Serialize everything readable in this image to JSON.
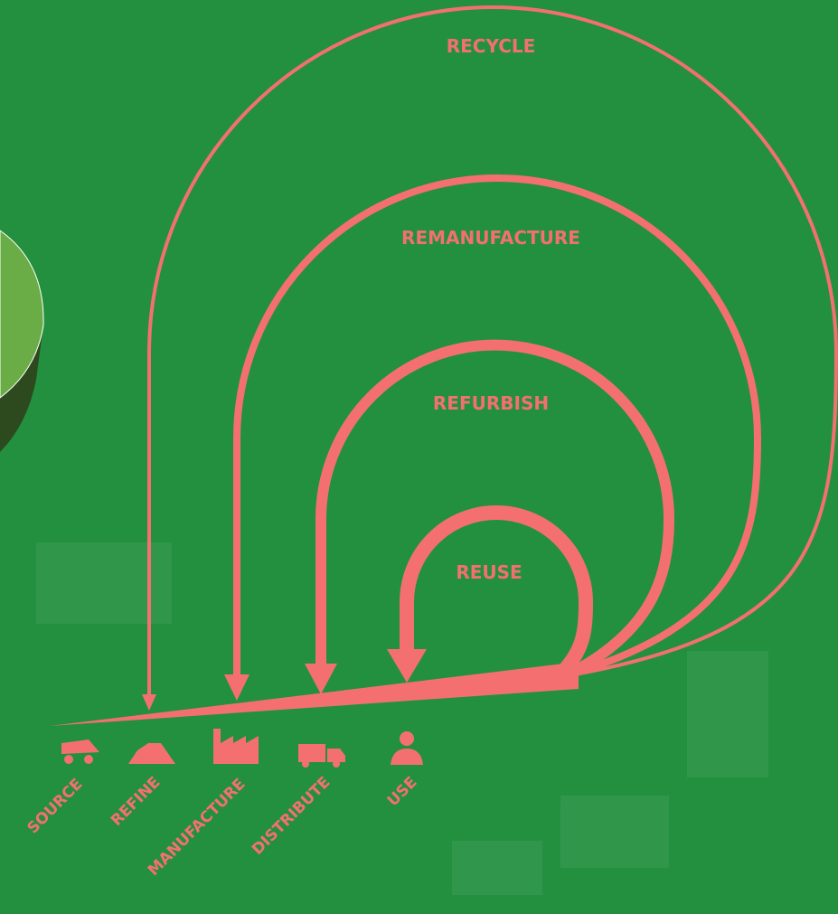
{
  "loops": [
    {
      "label": "RECYCLE"
    },
    {
      "label": "REMANUFACTURE"
    },
    {
      "label": "REFURBISH"
    },
    {
      "label": "REUSE"
    }
  ],
  "stages": [
    {
      "label": "SOURCE"
    },
    {
      "label": "REFINE"
    },
    {
      "label": "MANUFACTURE"
    },
    {
      "label": "DISTRIBUTE"
    },
    {
      "label": "USE"
    }
  ]
}
